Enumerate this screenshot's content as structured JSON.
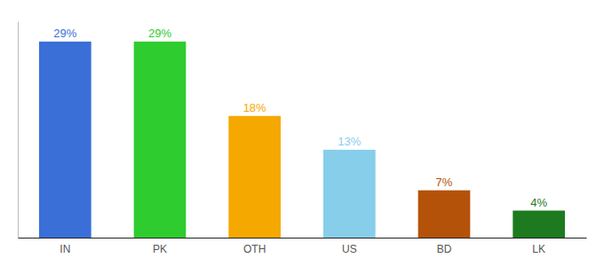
{
  "chart_data": {
    "type": "bar",
    "categories": [
      "IN",
      "PK",
      "OTH",
      "US",
      "BD",
      "LK"
    ],
    "values": [
      29,
      29,
      18,
      13,
      7,
      4
    ],
    "value_labels": [
      "29%",
      "29%",
      "18%",
      "13%",
      "7%",
      "4%"
    ],
    "colors": [
      "#3a6fd8",
      "#2ecc2e",
      "#f5a800",
      "#87ceeb",
      "#b5520a",
      "#1e7a1e"
    ],
    "ylim": [
      0,
      32
    ],
    "grid": false,
    "data_labels": true,
    "tick_labels": "x"
  }
}
